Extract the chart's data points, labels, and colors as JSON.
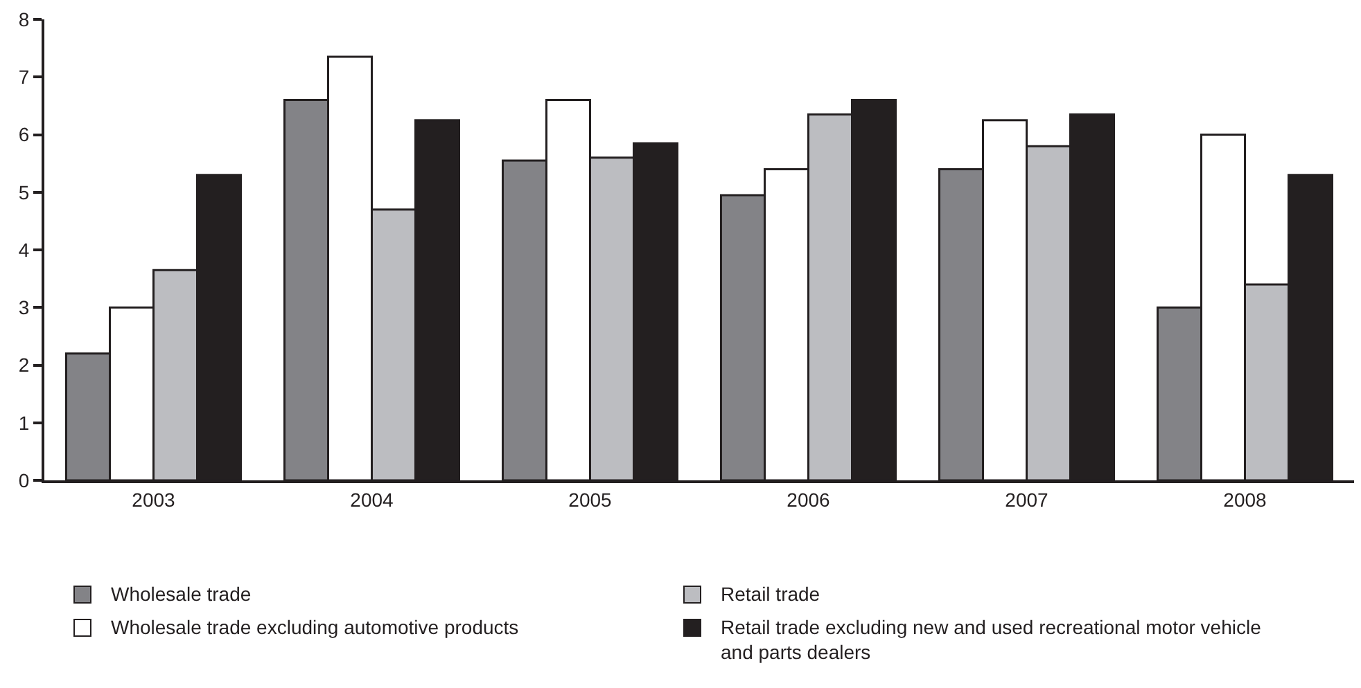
{
  "chart_data": {
    "type": "bar",
    "categories": [
      "2003",
      "2004",
      "2005",
      "2006",
      "2007",
      "2008"
    ],
    "series": [
      {
        "name": "Wholesale trade",
        "color": "#838387",
        "values": [
          2.2,
          6.6,
          5.55,
          4.95,
          5.4,
          3.0
        ]
      },
      {
        "name": "Wholesale trade excluding automotive products",
        "color": "#ffffff",
        "values": [
          3.0,
          7.35,
          6.6,
          5.4,
          6.25,
          6.0
        ]
      },
      {
        "name": "Retail trade",
        "color": "#bcbdc1",
        "values": [
          3.65,
          4.7,
          5.6,
          6.35,
          5.8,
          3.4
        ]
      },
      {
        "name": "Retail trade excluding new and used recreational motor vehicle and parts dealers",
        "color": "#231f20",
        "values": [
          5.3,
          6.25,
          5.85,
          6.6,
          6.35,
          5.3
        ]
      }
    ],
    "ylim": [
      0,
      8
    ],
    "yticks": [
      0,
      1,
      2,
      3,
      4,
      5,
      6,
      7,
      8
    ],
    "grid": false,
    "legend": "bottom"
  }
}
